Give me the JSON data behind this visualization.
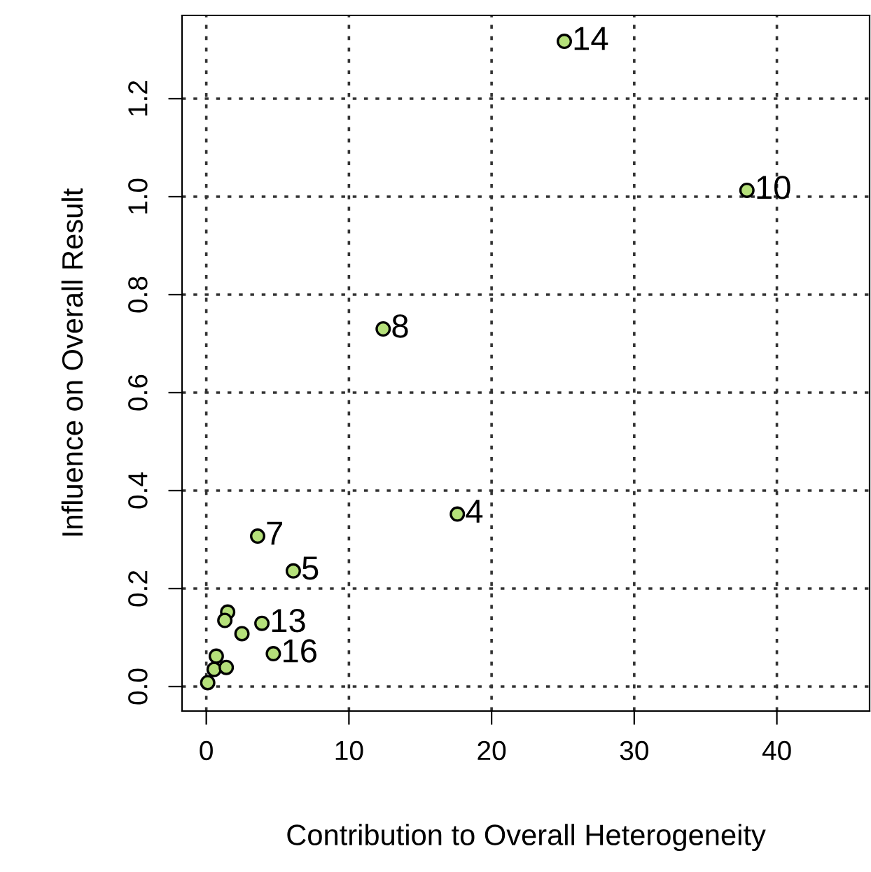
{
  "chart_data": {
    "type": "scatter",
    "xlabel": "Contribution to Overall Heterogeneity",
    "ylabel": "Influence on Overall Result",
    "x": [
      25.1,
      37.9,
      12.4,
      17.6,
      3.6,
      6.1,
      3.9,
      4.7,
      1.5,
      1.3,
      2.5,
      0.7,
      0.55,
      1.4,
      0.1
    ],
    "series": [
      {
        "color": "#b5e07a",
        "values": [
          1.317,
          1.013,
          0.73,
          0.352,
          0.307,
          0.236,
          0.129,
          0.067,
          0.152,
          0.135,
          0.108,
          0.062,
          0.035,
          0.039,
          0.008
        ]
      }
    ],
    "annotations": [
      {
        "text": "14",
        "x": 25.1,
        "y": 1.317
      },
      {
        "text": "10",
        "x": 37.9,
        "y": 1.013
      },
      {
        "text": "8",
        "x": 12.4,
        "y": 0.73
      },
      {
        "text": "4",
        "x": 17.6,
        "y": 0.352
      },
      {
        "text": "7",
        "x": 3.6,
        "y": 0.307
      },
      {
        "text": "5",
        "x": 6.1,
        "y": 0.236
      },
      {
        "text": "13",
        "x": 3.9,
        "y": 0.129
      },
      {
        "text": "16",
        "x": 4.7,
        "y": 0.067
      }
    ],
    "xlim": [
      -1.7,
      46.5
    ],
    "ylim": [
      -0.05,
      1.37
    ],
    "xticks": [
      0,
      10,
      20,
      30,
      40
    ],
    "yticks": [
      {
        "value": 0,
        "label": "0.0"
      },
      0.2,
      0.4,
      0.6,
      0.8,
      {
        "value": 1,
        "label": "1.0"
      },
      1.2
    ],
    "grid": true,
    "marker": "circle"
  }
}
